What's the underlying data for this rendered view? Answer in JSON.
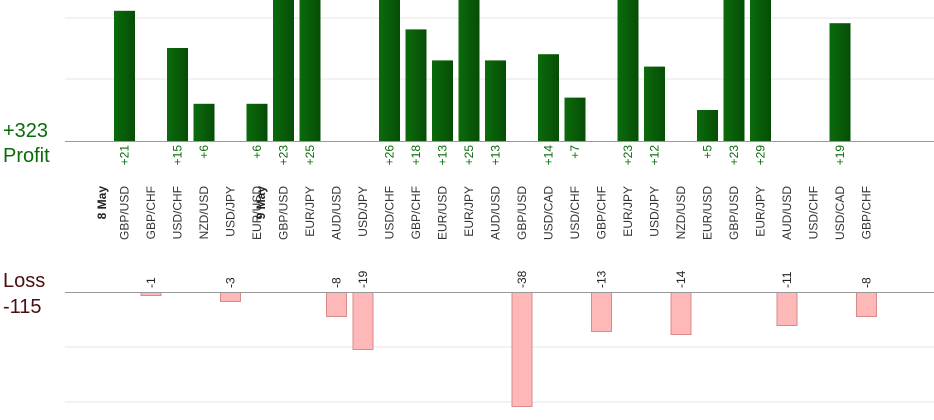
{
  "summary": {
    "profit_value": "+323",
    "profit_label": "Profit",
    "loss_label": "Loss",
    "loss_value": "-115"
  },
  "colors": {
    "profit_bar": "#0b6b0b",
    "profit_bar_dark": "#064d06",
    "profit_text": "#0a6b0a",
    "loss_bar": "#ffb8b8",
    "loss_bar_border": "#d98a8a",
    "loss_text": "#222222"
  },
  "chart_data": {
    "type": "bar",
    "profit_ylim": [
      0,
      31
    ],
    "loss_ylim": [
      -50,
      0
    ],
    "date_labels": [
      {
        "label": "8 May",
        "before_index": 0
      },
      {
        "label": "9 May",
        "before_index": 6
      }
    ],
    "categories": [
      "GBP/USD",
      "GBP/CHF",
      "USD/CHF",
      "NZD/USD",
      "USD/JPY",
      "EUR/USD",
      "GBP/USD",
      "EUR/JPY",
      "AUD/USD",
      "USD/JPY",
      "USD/CHF",
      "GBP/CHF",
      "EUR/USD",
      "EUR/JPY",
      "AUD/USD",
      "GBP/USD",
      "USD/CAD",
      "USD/CHF",
      "GBP/CHF",
      "EUR/JPY",
      "USD/JPY",
      "NZD/USD",
      "EUR/USD",
      "GBP/USD",
      "EUR/JPY",
      "AUD/USD",
      "USD/CHF",
      "USD/CAD",
      "GBP/CHF"
    ],
    "values": [
      21,
      -1,
      15,
      6,
      -3,
      6,
      23,
      25,
      -8,
      -19,
      26,
      18,
      13,
      25,
      13,
      -38,
      14,
      7,
      -13,
      23,
      12,
      -14,
      5,
      23,
      29,
      -11,
      null,
      19,
      -8
    ]
  }
}
